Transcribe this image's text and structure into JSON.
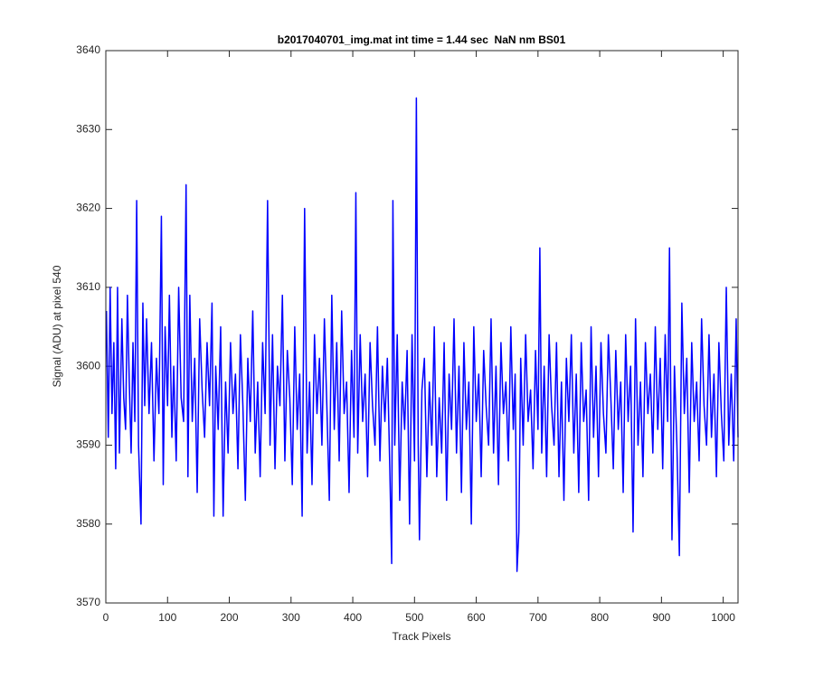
{
  "chart_data": {
    "type": "line",
    "title": "b2017040701_img.mat int time = 1.44 sec  NaN nm BS01",
    "x_label": "Track Pixels",
    "y_label": "Signal (ADU) at pixel 540",
    "color": "#0000ff",
    "xlim": [
      0,
      1024
    ],
    "ylim": [
      3570,
      3640
    ],
    "xticks": [
      0,
      100,
      200,
      300,
      400,
      500,
      600,
      700,
      800,
      900,
      1000
    ],
    "yticks": [
      3570,
      3580,
      3590,
      3600,
      3610,
      3620,
      3630,
      3640
    ],
    "grid": false,
    "x": [
      1,
      4,
      7,
      10,
      13,
      16,
      19,
      22,
      26,
      29,
      32,
      35,
      38,
      41,
      44,
      47,
      50,
      53,
      57,
      60,
      63,
      66,
      70,
      74,
      78,
      82,
      86,
      90,
      93,
      96,
      100,
      103,
      107,
      110,
      114,
      118,
      122,
      126,
      130,
      133,
      136,
      140,
      144,
      148,
      152,
      156,
      160,
      164,
      168,
      172,
      175,
      178,
      182,
      186,
      190,
      194,
      198,
      202,
      206,
      210,
      214,
      218,
      222,
      226,
      230,
      234,
      238,
      242,
      246,
      250,
      254,
      258,
      262,
      266,
      270,
      274,
      278,
      282,
      286,
      290,
      294,
      298,
      302,
      306,
      310,
      314,
      318,
      322,
      326,
      330,
      334,
      338,
      342,
      346,
      350,
      354,
      358,
      362,
      366,
      370,
      374,
      378,
      382,
      386,
      390,
      394,
      398,
      402,
      405,
      408,
      412,
      416,
      420,
      424,
      428,
      432,
      436,
      440,
      444,
      448,
      452,
      456,
      460,
      463,
      465,
      468,
      472,
      476,
      480,
      484,
      488,
      492,
      496,
      500,
      503,
      506,
      508,
      512,
      516,
      520,
      524,
      528,
      532,
      536,
      540,
      544,
      548,
      552,
      556,
      560,
      564,
      568,
      572,
      576,
      580,
      584,
      588,
      592,
      596,
      600,
      604,
      608,
      612,
      616,
      620,
      624,
      628,
      632,
      636,
      640,
      644,
      648,
      652,
      656,
      660,
      663,
      666,
      669,
      672,
      676,
      680,
      684,
      688,
      692,
      696,
      700,
      703,
      706,
      710,
      714,
      718,
      722,
      726,
      730,
      734,
      738,
      742,
      746,
      750,
      754,
      758,
      762,
      766,
      770,
      774,
      778,
      782,
      786,
      790,
      794,
      798,
      802,
      806,
      810,
      814,
      818,
      822,
      826,
      830,
      834,
      838,
      842,
      846,
      850,
      854,
      858,
      862,
      866,
      870,
      874,
      878,
      882,
      886,
      890,
      894,
      898,
      902,
      906,
      910,
      913,
      917,
      921,
      925,
      929,
      933,
      937,
      941,
      945,
      949,
      953,
      957,
      961,
      965,
      969,
      973,
      977,
      981,
      985,
      989,
      993,
      997,
      1001,
      1005,
      1009,
      1013,
      1017,
      1021,
      1024
    ],
    "values": [
      3607,
      3591,
      3610,
      3594,
      3603,
      3587,
      3610,
      3589,
      3606,
      3596,
      3592,
      3609,
      3598,
      3589,
      3603,
      3593,
      3621,
      3590,
      3580,
      3608,
      3595,
      3606,
      3594,
      3603,
      3588,
      3601,
      3594,
      3619,
      3585,
      3605,
      3595,
      3609,
      3591,
      3600,
      3588,
      3610,
      3596,
      3593,
      3623,
      3586,
      3609,
      3593,
      3601,
      3584,
      3606,
      3597,
      3591,
      3603,
      3595,
      3608,
      3581,
      3600,
      3592,
      3605,
      3581,
      3598,
      3589,
      3603,
      3594,
      3599,
      3587,
      3604,
      3595,
      3583,
      3601,
      3593,
      3607,
      3589,
      3598,
      3586,
      3603,
      3594,
      3621,
      3590,
      3604,
      3587,
      3600,
      3595,
      3609,
      3588,
      3602,
      3596,
      3585,
      3605,
      3592,
      3599,
      3581,
      3620,
      3589,
      3598,
      3585,
      3604,
      3594,
      3601,
      3590,
      3606,
      3595,
      3583,
      3609,
      3592,
      3603,
      3588,
      3607,
      3594,
      3598,
      3584,
      3602,
      3591,
      3622,
      3589,
      3604,
      3593,
      3599,
      3586,
      3603,
      3595,
      3590,
      3605,
      3588,
      3600,
      3593,
      3601,
      3587,
      3575,
      3621,
      3590,
      3604,
      3583,
      3598,
      3592,
      3602,
      3580,
      3604,
      3588,
      3634,
      3590,
      3578,
      3597,
      3601,
      3586,
      3598,
      3590,
      3605,
      3586,
      3596,
      3589,
      3603,
      3583,
      3599,
      3592,
      3606,
      3589,
      3600,
      3584,
      3603,
      3592,
      3598,
      3580,
      3605,
      3593,
      3599,
      3586,
      3602,
      3595,
      3590,
      3606,
      3589,
      3600,
      3585,
      3603,
      3594,
      3598,
      3588,
      3605,
      3592,
      3599,
      3574,
      3579,
      3601,
      3590,
      3604,
      3593,
      3597,
      3587,
      3602,
      3592,
      3615,
      3589,
      3600,
      3586,
      3604,
      3595,
      3590,
      3603,
      3586,
      3598,
      3583,
      3601,
      3593,
      3604,
      3589,
      3599,
      3584,
      3603,
      3593,
      3597,
      3583,
      3605,
      3591,
      3600,
      3586,
      3603,
      3594,
      3589,
      3604,
      3596,
      3587,
      3602,
      3592,
      3598,
      3584,
      3604,
      3593,
      3600,
      3579,
      3606,
      3590,
      3598,
      3586,
      3603,
      3594,
      3599,
      3589,
      3605,
      3592,
      3601,
      3587,
      3604,
      3593,
      3615,
      3578,
      3600,
      3590,
      3576,
      3608,
      3594,
      3601,
      3584,
      3603,
      3593,
      3598,
      3588,
      3606,
      3595,
      3590,
      3604,
      3591,
      3599,
      3586,
      3603,
      3594,
      3588,
      3610,
      3590,
      3599,
      3588,
      3606,
      3591
    ]
  }
}
